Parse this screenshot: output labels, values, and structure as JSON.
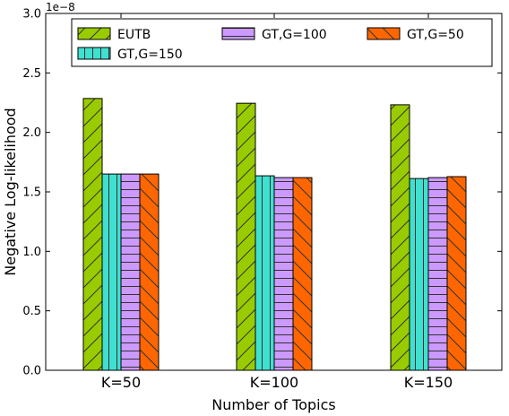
{
  "chart_data": {
    "type": "bar",
    "categories": [
      "K=50",
      "K=100",
      "K=150"
    ],
    "series": [
      {
        "name": "EUTB",
        "values": [
          2.285,
          2.245,
          2.232
        ],
        "color": "#99cc00",
        "hatch": "diagonal"
      },
      {
        "name": "GT,G=150",
        "values": [
          1.65,
          1.635,
          1.612
        ],
        "color": "#40e0d0",
        "hatch": "vertical"
      },
      {
        "name": "GT,G=100",
        "values": [
          1.65,
          1.62,
          1.62
        ],
        "color": "#cc99ff",
        "hatch": "horizontal"
      },
      {
        "name": "GT,G=50",
        "values": [
          1.65,
          1.62,
          1.628
        ],
        "color": "#ff6600",
        "hatch": "backdiagonal"
      }
    ],
    "xlabel": "Number of Topics",
    "ylabel": "Negative Log-likelihood",
    "y_scale_label": "1e−8",
    "ylim": [
      0.0,
      3.0
    ],
    "yticks": [
      "0.0",
      "0.5",
      "1.0",
      "1.5",
      "2.0",
      "2.5",
      "3.0"
    ],
    "legend_position": "top",
    "grid": false
  }
}
